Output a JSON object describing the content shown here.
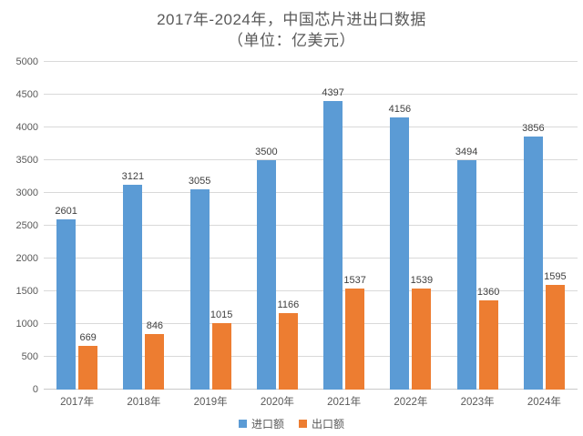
{
  "chart_data": {
    "type": "bar",
    "title": "2017年-2024年，中国芯片进出口数据",
    "subtitle": "（单位：亿美元）",
    "categories": [
      "2017年",
      "2018年",
      "2019年",
      "2020年",
      "2021年",
      "2022年",
      "2023年",
      "2024年"
    ],
    "series": [
      {
        "name": "进口额",
        "color": "#5B9BD5",
        "values": [
          2601,
          3121,
          3055,
          3500,
          4397,
          4156,
          3494,
          3856
        ]
      },
      {
        "name": "出口额",
        "color": "#ED7D31",
        "values": [
          669,
          846,
          1015,
          1166,
          1537,
          1539,
          1360,
          1595
        ]
      }
    ],
    "ylabel": "",
    "xlabel": "",
    "ylim": [
      0,
      5000
    ],
    "ytick_step": 500,
    "grid": true,
    "legend_position": "bottom",
    "colors": {
      "title_text": "#595959",
      "axis_text": "#595959",
      "data_label_text": "#404040",
      "gridline": "#d9d9d9",
      "background": "#ffffff"
    }
  }
}
